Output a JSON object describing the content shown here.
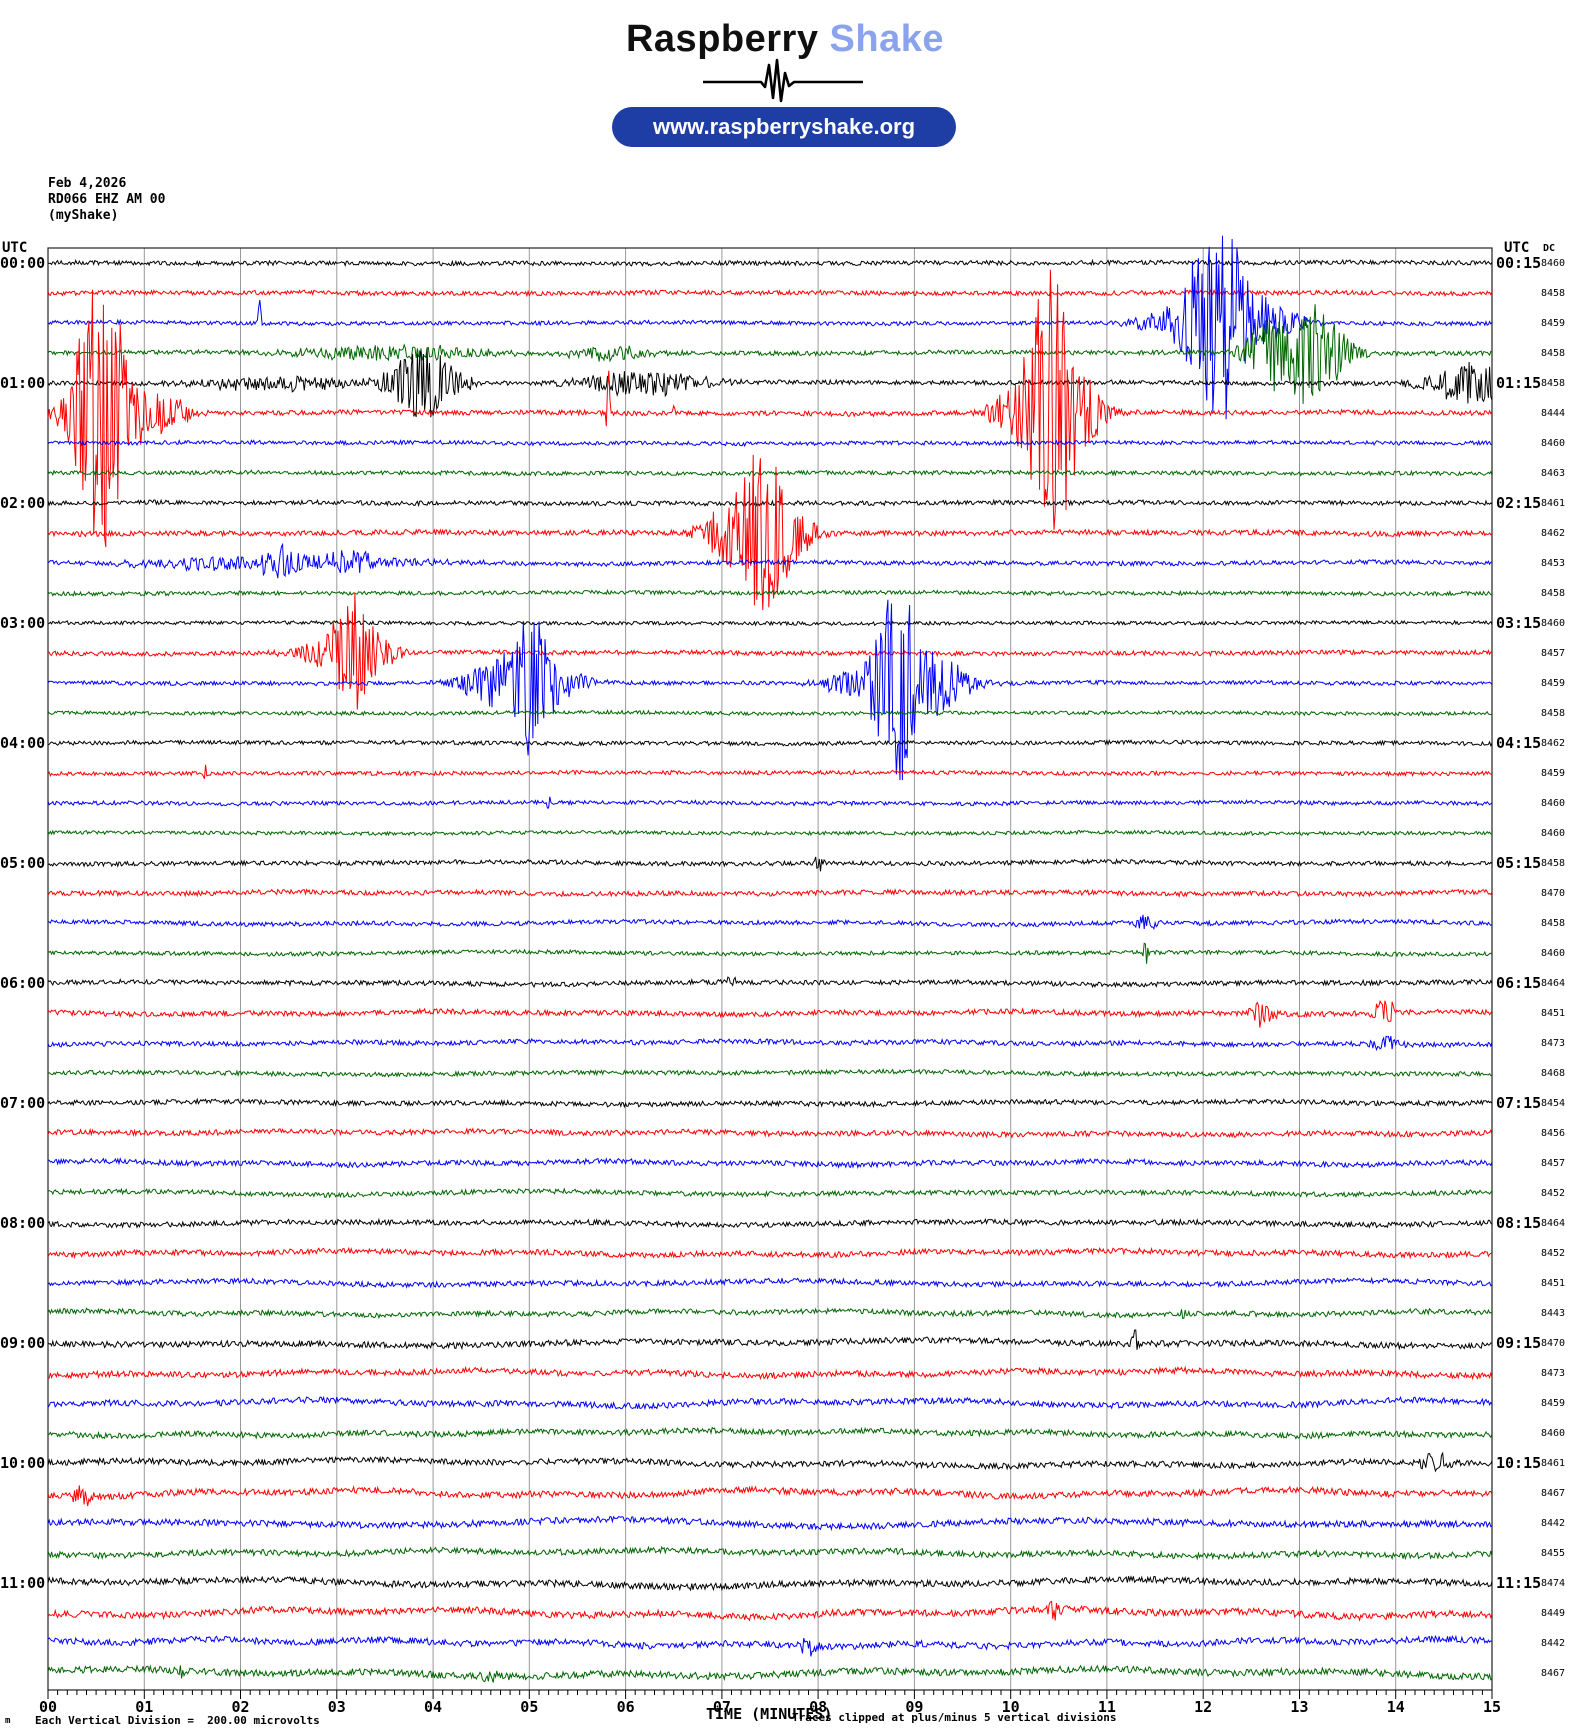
{
  "logo": {
    "brand_black": "Raspberry",
    "brand_blue_text": "Shake",
    "brand_blue_color": "#8ba3ec",
    "pill_bg": "#1e3ea6",
    "url_label": "www.raspberryshake.org",
    "waveform_icon": "seismic-pulse"
  },
  "header": {
    "date": "Feb 4,2026",
    "station": "RD066 EHZ AM 00",
    "network": "(myShake)"
  },
  "axis": {
    "left_header": "UTC",
    "right_header": "UTC",
    "dc_header": "DC",
    "xlabel": "TIME (MINUTES)",
    "clip_note": "Traces clipped at plus/minus 5 vertical divisions",
    "footer_note": "Each Vertical Division =  200.00 microvolts",
    "footer_corner": "m"
  },
  "chart_data": {
    "type": "line",
    "title": "Raspberry Shake helicorder, station RD066 EHZ AM 00, Feb 4 2026",
    "x_range_minutes": [
      0,
      15
    ],
    "x_tick_labels": [
      "00",
      "01",
      "02",
      "03",
      "04",
      "05",
      "06",
      "07",
      "08",
      "09",
      "10",
      "11",
      "12",
      "13",
      "14",
      "15"
    ],
    "minutes_per_row": 15,
    "rows_per_hour": 4,
    "division_microvolts": 200.0,
    "clip_divisions": 5,
    "grid": "vertical-only",
    "palette": {
      "black": "#000000",
      "red": "#ff0000",
      "blue": "#0000ff",
      "green": "#006600",
      "grid": "#999999",
      "frame": "#222222"
    },
    "event_units": "m=center minute, w=gaussian sigma minutes, a=peak amplitude px (30px = 1 division)",
    "rows": [
      {
        "color": "black",
        "utc_left": "00:00",
        "utc_right": "00:15",
        "dc": 8460,
        "noise": 2.2,
        "wander": 0.5,
        "events": []
      },
      {
        "color": "red",
        "utc_left": null,
        "utc_right": null,
        "dc": 8458,
        "noise": 2.2,
        "wander": 0.5,
        "events": []
      },
      {
        "color": "blue",
        "utc_left": null,
        "utc_right": null,
        "dc": 8459,
        "noise": 2.0,
        "wander": 0.5,
        "events": [
          {
            "m": 2.2,
            "w": 0.013,
            "a": 30
          },
          {
            "m": 11.72,
            "w": 0.3,
            "a": 13
          },
          {
            "m": 12.08,
            "w": 0.2,
            "a": 88
          },
          {
            "m": 12.38,
            "w": 0.16,
            "a": 50
          },
          {
            "m": 12.72,
            "w": 0.25,
            "a": 16
          }
        ]
      },
      {
        "color": "green",
        "utc_left": null,
        "utc_right": null,
        "dc": 8458,
        "noise": 2.2,
        "wander": 0.6,
        "events": [
          {
            "m": 3.6,
            "w": 0.7,
            "a": 8
          },
          {
            "m": 5.9,
            "w": 0.3,
            "a": 7
          },
          {
            "m": 12.72,
            "w": 0.2,
            "a": 36
          },
          {
            "m": 13.08,
            "w": 0.15,
            "a": 52
          },
          {
            "m": 13.38,
            "w": 0.16,
            "a": 22
          }
        ]
      },
      {
        "color": "black",
        "utc_left": "01:00",
        "utc_right": "01:15",
        "dc": 8458,
        "noise": 2.2,
        "wander": 0.6,
        "events": [
          {
            "m": 2.4,
            "w": 0.55,
            "a": 7
          },
          {
            "m": 3.9,
            "w": 0.25,
            "a": 38
          },
          {
            "m": 6.2,
            "w": 0.45,
            "a": 13
          },
          {
            "m": 14.75,
            "w": 0.3,
            "a": 22
          }
        ]
      },
      {
        "color": "red",
        "utc_left": null,
        "utc_right": null,
        "dc": 8444,
        "noise": 2.4,
        "wander": 0.6,
        "events": [
          {
            "m": 0.55,
            "w": 0.2,
            "a": 145
          },
          {
            "m": 1.1,
            "w": 0.25,
            "a": 22
          },
          {
            "m": 5.82,
            "w": 0.012,
            "a": 55
          },
          {
            "m": 6.5,
            "w": 0.012,
            "a": 20
          },
          {
            "m": 10.08,
            "w": 0.22,
            "a": 22
          },
          {
            "m": 10.42,
            "w": 0.18,
            "a": 150
          },
          {
            "m": 10.75,
            "w": 0.18,
            "a": 30
          }
        ]
      },
      {
        "color": "blue",
        "utc_left": null,
        "utc_right": null,
        "dc": 8460,
        "noise": 2.0,
        "wander": 0.5,
        "events": []
      },
      {
        "color": "green",
        "utc_left": null,
        "utc_right": null,
        "dc": 8463,
        "noise": 2.0,
        "wander": 0.5,
        "events": []
      },
      {
        "color": "black",
        "utc_left": "02:00",
        "utc_right": "02:15",
        "dc": 8461,
        "noise": 2.2,
        "wander": 0.5,
        "events": []
      },
      {
        "color": "red",
        "utc_left": null,
        "utc_right": null,
        "dc": 8462,
        "noise": 2.6,
        "wander": 0.6,
        "events": [
          {
            "m": 7.02,
            "w": 0.2,
            "a": 20
          },
          {
            "m": 7.42,
            "w": 0.22,
            "a": 80
          },
          {
            "m": 7.78,
            "w": 0.18,
            "a": 13
          }
        ]
      },
      {
        "color": "blue",
        "utc_left": null,
        "utc_right": null,
        "dc": 8453,
        "noise": 2.2,
        "wander": 0.8,
        "events": [
          {
            "m": 2.3,
            "w": 1.0,
            "a": 7
          },
          {
            "m": 2.4,
            "w": 0.12,
            "a": 13
          },
          {
            "m": 3.15,
            "w": 0.15,
            "a": 12
          }
        ]
      },
      {
        "color": "green",
        "utc_left": null,
        "utc_right": null,
        "dc": 8458,
        "noise": 2.0,
        "wander": 0.5,
        "events": []
      },
      {
        "color": "black",
        "utc_left": "03:00",
        "utc_right": "03:15",
        "dc": 8460,
        "noise": 1.8,
        "wander": 0.4,
        "events": []
      },
      {
        "color": "red",
        "utc_left": null,
        "utc_right": null,
        "dc": 8457,
        "noise": 2.2,
        "wander": 0.6,
        "events": [
          {
            "m": 2.85,
            "w": 0.22,
            "a": 13
          },
          {
            "m": 3.17,
            "w": 0.16,
            "a": 62
          },
          {
            "m": 3.5,
            "w": 0.16,
            "a": 10
          }
        ]
      },
      {
        "color": "blue",
        "utc_left": null,
        "utc_right": null,
        "dc": 8459,
        "noise": 2.0,
        "wander": 0.5,
        "events": [
          {
            "m": 4.6,
            "w": 0.25,
            "a": 20
          },
          {
            "m": 5.0,
            "w": 0.18,
            "a": 70
          },
          {
            "m": 5.35,
            "w": 0.2,
            "a": 12
          },
          {
            "m": 8.45,
            "w": 0.25,
            "a": 16
          },
          {
            "m": 8.78,
            "w": 0.16,
            "a": 100
          },
          {
            "m": 9.12,
            "w": 0.2,
            "a": 38
          },
          {
            "m": 9.45,
            "w": 0.2,
            "a": 11
          }
        ]
      },
      {
        "color": "green",
        "utc_left": null,
        "utc_right": null,
        "dc": 8458,
        "noise": 1.8,
        "wander": 0.5,
        "events": []
      },
      {
        "color": "black",
        "utc_left": "04:00",
        "utc_right": "04:15",
        "dc": 8462,
        "noise": 2.0,
        "wander": 0.5,
        "events": []
      },
      {
        "color": "red",
        "utc_left": null,
        "utc_right": null,
        "dc": 8459,
        "noise": 2.0,
        "wander": 0.5,
        "events": [
          {
            "m": 1.63,
            "w": 0.012,
            "a": 10
          }
        ]
      },
      {
        "color": "blue",
        "utc_left": null,
        "utc_right": null,
        "dc": 8460,
        "noise": 2.0,
        "wander": 0.6,
        "events": [
          {
            "m": 5.2,
            "w": 0.012,
            "a": 10
          }
        ]
      },
      {
        "color": "green",
        "utc_left": null,
        "utc_right": null,
        "dc": 8460,
        "noise": 1.8,
        "wander": 0.5,
        "events": []
      },
      {
        "color": "black",
        "utc_left": "05:00",
        "utc_right": "05:15",
        "dc": 8458,
        "noise": 2.2,
        "wander": 0.8,
        "events": [
          {
            "m": 8.0,
            "w": 0.05,
            "a": 7
          }
        ]
      },
      {
        "color": "red",
        "utc_left": null,
        "utc_right": null,
        "dc": 8470,
        "noise": 2.4,
        "wander": 0.8,
        "events": []
      },
      {
        "color": "blue",
        "utc_left": null,
        "utc_right": null,
        "dc": 8458,
        "noise": 2.2,
        "wander": 1.0,
        "events": [
          {
            "m": 11.4,
            "w": 0.08,
            "a": 8
          }
        ]
      },
      {
        "color": "green",
        "utc_left": null,
        "utc_right": null,
        "dc": 8460,
        "noise": 2.0,
        "wander": 0.8,
        "events": [
          {
            "m": 11.4,
            "w": 0.018,
            "a": 18
          }
        ]
      },
      {
        "color": "black",
        "utc_left": "06:00",
        "utc_right": "06:15",
        "dc": 8464,
        "noise": 2.4,
        "wander": 1.0,
        "events": [
          {
            "m": 7.1,
            "w": 0.04,
            "a": 6
          }
        ]
      },
      {
        "color": "red",
        "utc_left": null,
        "utc_right": null,
        "dc": 8451,
        "noise": 2.6,
        "wander": 1.0,
        "events": [
          {
            "m": 12.6,
            "w": 0.1,
            "a": 12
          },
          {
            "m": 13.88,
            "w": 0.09,
            "a": 13
          }
        ]
      },
      {
        "color": "blue",
        "utc_left": null,
        "utc_right": null,
        "dc": 8473,
        "noise": 2.4,
        "wander": 1.2,
        "events": [
          {
            "m": 13.9,
            "w": 0.1,
            "a": 8
          }
        ]
      },
      {
        "color": "green",
        "utc_left": null,
        "utc_right": null,
        "dc": 8468,
        "noise": 2.2,
        "wander": 1.0,
        "events": []
      },
      {
        "color": "black",
        "utc_left": "07:00",
        "utc_right": "07:15",
        "dc": 8454,
        "noise": 2.4,
        "wander": 1.0,
        "events": []
      },
      {
        "color": "red",
        "utc_left": null,
        "utc_right": null,
        "dc": 8456,
        "noise": 2.6,
        "wander": 1.2,
        "events": []
      },
      {
        "color": "blue",
        "utc_left": null,
        "utc_right": null,
        "dc": 8457,
        "noise": 2.6,
        "wander": 1.2,
        "events": []
      },
      {
        "color": "green",
        "utc_left": null,
        "utc_right": null,
        "dc": 8452,
        "noise": 2.4,
        "wander": 1.2,
        "events": []
      },
      {
        "color": "black",
        "utc_left": "08:00",
        "utc_right": "08:15",
        "dc": 8464,
        "noise": 2.6,
        "wander": 1.2,
        "events": []
      },
      {
        "color": "red",
        "utc_left": null,
        "utc_right": null,
        "dc": 8452,
        "noise": 2.8,
        "wander": 1.4,
        "events": []
      },
      {
        "color": "blue",
        "utc_left": null,
        "utc_right": null,
        "dc": 8451,
        "noise": 2.6,
        "wander": 1.4,
        "events": []
      },
      {
        "color": "green",
        "utc_left": null,
        "utc_right": null,
        "dc": 8443,
        "noise": 2.6,
        "wander": 1.5,
        "events": [
          {
            "m": 11.8,
            "w": 0.018,
            "a": 10
          }
        ]
      },
      {
        "color": "black",
        "utc_left": "09:00",
        "utc_right": "09:15",
        "dc": 8470,
        "noise": 3.0,
        "wander": 1.8,
        "events": [
          {
            "m": 11.28,
            "w": 0.02,
            "a": 26
          }
        ]
      },
      {
        "color": "red",
        "utc_left": null,
        "utc_right": null,
        "dc": 8473,
        "noise": 3.0,
        "wander": 1.8,
        "events": []
      },
      {
        "color": "blue",
        "utc_left": null,
        "utc_right": null,
        "dc": 8459,
        "noise": 3.0,
        "wander": 2.0,
        "events": []
      },
      {
        "color": "green",
        "utc_left": null,
        "utc_right": null,
        "dc": 8460,
        "noise": 2.8,
        "wander": 1.8,
        "events": []
      },
      {
        "color": "black",
        "utc_left": "10:00",
        "utc_right": "10:15",
        "dc": 8461,
        "noise": 3.0,
        "wander": 2.0,
        "events": [
          {
            "m": 14.4,
            "w": 0.1,
            "a": 11
          }
        ]
      },
      {
        "color": "red",
        "utc_left": null,
        "utc_right": null,
        "dc": 8467,
        "noise": 3.2,
        "wander": 2.2,
        "events": [
          {
            "m": 0.35,
            "w": 0.1,
            "a": 10
          }
        ]
      },
      {
        "color": "blue",
        "utc_left": null,
        "utc_right": null,
        "dc": 8442,
        "noise": 3.2,
        "wander": 2.2,
        "events": []
      },
      {
        "color": "green",
        "utc_left": null,
        "utc_right": null,
        "dc": 8455,
        "noise": 3.0,
        "wander": 2.0,
        "events": []
      },
      {
        "color": "black",
        "utc_left": "11:00",
        "utc_right": "11:15",
        "dc": 8474,
        "noise": 3.2,
        "wander": 2.4,
        "events": []
      },
      {
        "color": "red",
        "utc_left": null,
        "utc_right": null,
        "dc": 8449,
        "noise": 3.4,
        "wander": 2.6,
        "events": [
          {
            "m": 10.45,
            "w": 0.05,
            "a": 9
          }
        ]
      },
      {
        "color": "blue",
        "utc_left": null,
        "utc_right": null,
        "dc": 8442,
        "noise": 3.2,
        "wander": 2.4,
        "events": [
          {
            "m": 7.9,
            "w": 0.07,
            "a": 8
          }
        ]
      },
      {
        "color": "green",
        "utc_left": null,
        "utc_right": null,
        "dc": 8467,
        "noise": 3.4,
        "wander": 2.6,
        "events": [
          {
            "m": 1.4,
            "w": 0.05,
            "a": 8
          },
          {
            "m": 4.6,
            "w": 0.08,
            "a": 7
          }
        ]
      }
    ]
  }
}
